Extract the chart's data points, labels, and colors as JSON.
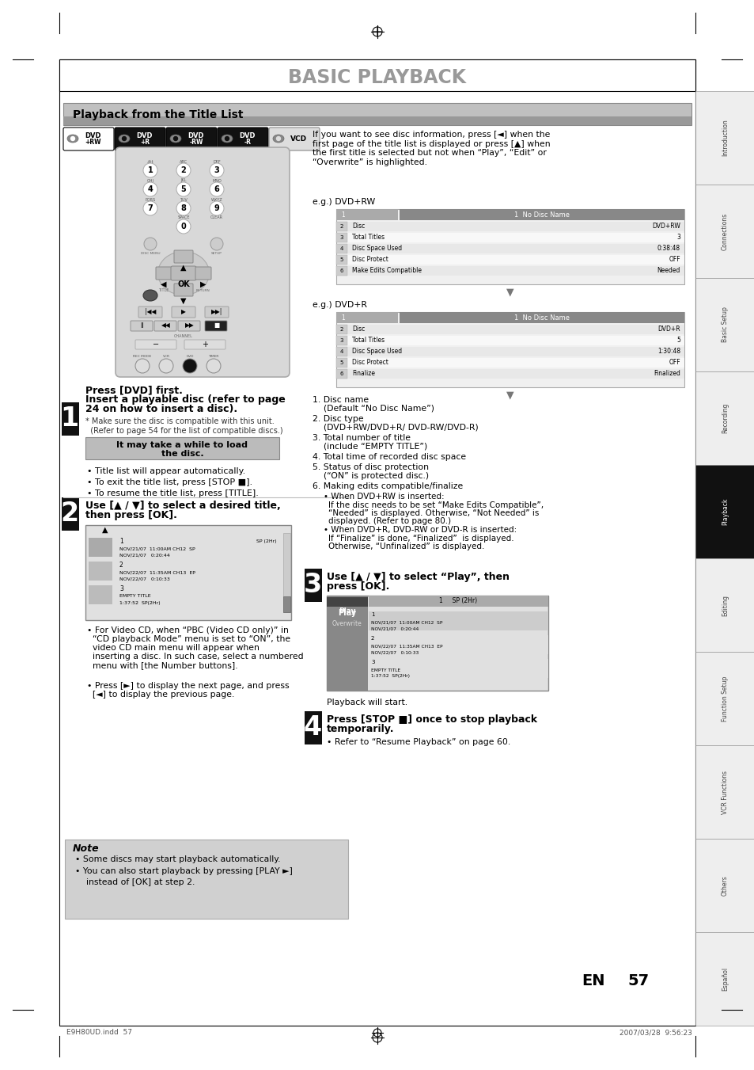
{
  "title": "BASIC PLAYBACK",
  "section_title": "Playback from the Title List",
  "bg_color": "#ffffff",
  "sidebar_labels": [
    "Introduction",
    "Connections",
    "Basic Setup",
    "Recording",
    "Playback",
    "Editing",
    "Function Setup",
    "VCR Functions",
    "Others",
    "Español"
  ],
  "page_num": "57",
  "footer_left": "E9H80UD.indd  57",
  "footer_right": "2007/03/28  9:56:23",
  "step1_bold": "Press [DVD] first.",
  "step1_text2": "Insert a playable disc (refer to page",
  "step1_text3": "24 on how to insert a disc).",
  "step1_note": "* Make sure the disc is compatible with this unit.\n  (Refer to page 54 for the list of compatible discs.)",
  "step1_box": "It may take a while to load\nthe disc.",
  "step1_bullets": [
    "Title list will appear automatically.",
    "To exit the title list, press [STOP ■].",
    "To resume the title list, press [TITLE]."
  ],
  "step2_bold1": "Use [▲ / ▼] to select a desired title,",
  "step2_bold2": "then press [OK].",
  "step2_bullets": [
    "For Video CD, when “PBC (Video CD only)” in\n“CD playback Mode” menu is set to “ON”, the\nvideo CD main menu will appear when\ninserting a disc. In such case, select a numbered\nmenu with [the Number buttons].",
    "Press [►] to display the next page, and press\n[◄] to display the previous page."
  ],
  "step3_bold1": "Use [▲ / ▼] to select “Play”, then",
  "step3_bold2": "press [OK].",
  "step3_sub": "Playback will start.",
  "step4_bold1": "Press [STOP ■] once to stop playback",
  "step4_bold2": "temporarily.",
  "step4_sub": "• Refer to “Resume Playback” on page 60.",
  "note_title": "Note",
  "note_bullets": [
    "Some discs may start playback automatically.",
    "You can also start playback by pressing [PLAY ►]\n  instead of [OK] at step 2."
  ],
  "right_col_text": "If you want to see disc information, press [◄] when the\nfirst page of the title list is displayed or press [▲] when\nthe first title is selected but not when “Play”, “Edit” or\n“Overwrite” is highlighted.",
  "eg1_label": "e.g.) DVD+RW",
  "eg2_label": "e.g.) DVD+R",
  "dvdrw_rows": [
    [
      "2",
      "Disc",
      "DVD+RW"
    ],
    [
      "3",
      "Total Titles",
      "3"
    ],
    [
      "4",
      "Disc Space Used",
      "0:38:48"
    ],
    [
      "5",
      "Disc Protect",
      "OFF"
    ],
    [
      "6",
      "Make Edits Compatible",
      "Needed"
    ]
  ],
  "dvdr_rows": [
    [
      "2",
      "Disc",
      "DVD+R"
    ],
    [
      "3",
      "Total Titles",
      "5"
    ],
    [
      "4",
      "Disc Space Used",
      "1:30:48"
    ],
    [
      "5",
      "Disc Protect",
      "OFF"
    ],
    [
      "6",
      "Finalize",
      "Finalized"
    ]
  ],
  "disc_info_items": [
    [
      "1. Disc name",
      "(Default “No Disc Name”)"
    ],
    [
      "2. Disc type",
      "(DVD+RW/DVD+R/ DVD-RW/DVD-R)"
    ],
    [
      "3. Total number of title",
      "(include “EMPTY TITLE”)"
    ],
    [
      "4. Total time of recorded disc space",
      ""
    ],
    [
      "5. Status of disc protection",
      "(“ON” is protected disc.)"
    ],
    [
      "6. Making edits compatible/finalize",
      ""
    ]
  ],
  "disc_info_bullets": [
    "• When DVD+RW is inserted:\n  If the disc needs to be set “Make Edits Compatible”,\n  “Needed” is displayed. Otherwise, “Not Needed” is\n  displayed. (Refer to page 80.)",
    "• When DVD+R, DVD-RW or DVD-R is inserted:\n  If “Finalize” is done, “Finalized”  is displayed.\n  Otherwise, “Unfinalized” is displayed."
  ],
  "screen2_entries": [
    [
      "1",
      "SP (2Hr)",
      "NOV/21/07  11:00AM CH12  SP",
      "NOV/21/07   0:20:44",
      true
    ],
    [
      "2",
      "",
      "NOV/22/07  11:35AM CH13  EP",
      "NOV/22/07   0:10:33",
      false
    ],
    [
      "3",
      "",
      "EMPTY TITLE",
      "1:37:52  SP(2Hr)",
      false
    ]
  ],
  "screen3_entries": [
    [
      "1",
      "SP (2Hr)",
      "NOV/21/07  11:00AM CH12  SP",
      "NOV/21/07   0:20:44"
    ],
    [
      "2",
      "",
      "NOV/22/07  11:35AM CH13  EP",
      "NOV/22/07   0:10:33"
    ],
    [
      "3",
      "",
      "EMPTY TITLE",
      "1:37:52  SP(2Hr)"
    ]
  ]
}
